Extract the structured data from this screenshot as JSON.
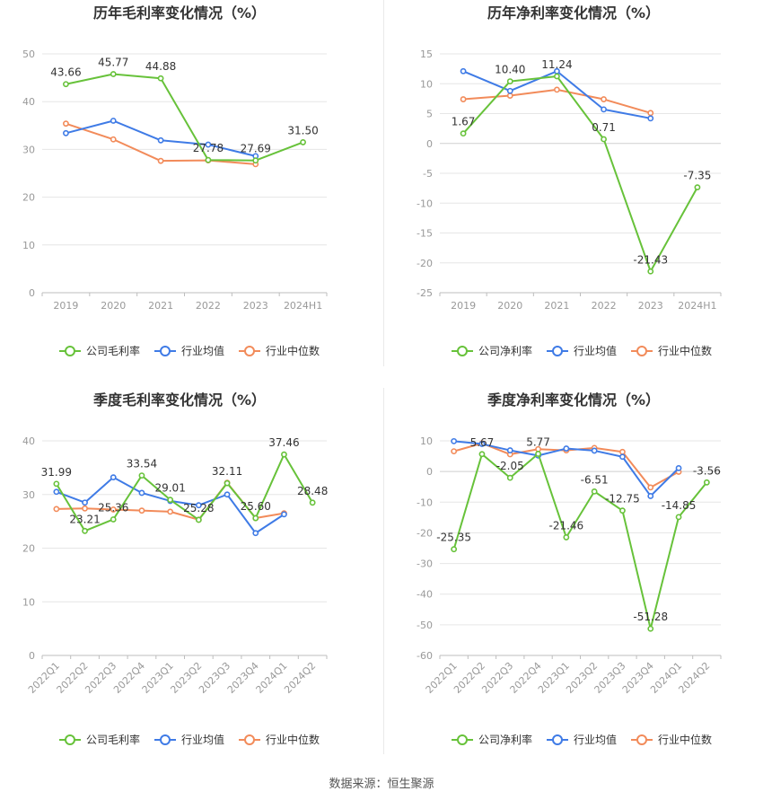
{
  "source": "数据来源：恒生聚源",
  "colors": {
    "company": "#67c23a",
    "avg": "#3f7be6",
    "median": "#f28b5a",
    "grid": "#e6e6e6",
    "axis": "#999999"
  },
  "legend_company_gross": "公司毛利率",
  "legend_company_net": "公司净利率",
  "legend_avg": "行业均值",
  "legend_median": "行业中位数",
  "chart_data": [
    {
      "id": "annual-gross",
      "type": "line",
      "title": "历年毛利率变化情况（%）",
      "categories": [
        "2019",
        "2020",
        "2021",
        "2022",
        "2023",
        "2024H1"
      ],
      "ylim": [
        0,
        50
      ],
      "yticks": [
        0,
        10,
        20,
        30,
        40,
        50
      ],
      "legend_position": "bottom",
      "series": [
        {
          "name": "公司毛利率",
          "role": "company",
          "values": [
            43.66,
            45.77,
            44.88,
            27.78,
            27.69,
            31.5
          ],
          "labels": [
            "43.66",
            "45.77",
            "44.88",
            "27.78",
            "27.69",
            "31.50"
          ]
        },
        {
          "name": "行业均值",
          "role": "avg",
          "values": [
            33.4,
            36.0,
            31.9,
            31.0,
            28.6,
            null
          ]
        },
        {
          "name": "行业中位数",
          "role": "median",
          "values": [
            35.4,
            32.1,
            27.6,
            27.7,
            26.9,
            null
          ]
        }
      ]
    },
    {
      "id": "annual-net",
      "type": "line",
      "title": "历年净利率变化情况（%）",
      "categories": [
        "2019",
        "2020",
        "2021",
        "2022",
        "2023",
        "2024H1"
      ],
      "ylim": [
        -25,
        15
      ],
      "yticks": [
        -25,
        -20,
        -15,
        -10,
        -5,
        0,
        5,
        10,
        15
      ],
      "legend_position": "bottom",
      "series": [
        {
          "name": "公司净利率",
          "role": "company",
          "values": [
            1.67,
            10.4,
            11.24,
            0.71,
            -21.43,
            -7.35
          ],
          "labels": [
            "1.67",
            "10.40",
            "11.24",
            "0.71",
            "-21.43",
            "-7.35"
          ]
        },
        {
          "name": "行业均值",
          "role": "avg",
          "values": [
            12.1,
            8.8,
            12.1,
            5.7,
            4.2,
            null
          ]
        },
        {
          "name": "行业中位数",
          "role": "median",
          "values": [
            7.4,
            8.0,
            9.0,
            7.4,
            5.1,
            null
          ]
        }
      ]
    },
    {
      "id": "quarterly-gross",
      "type": "line",
      "title": "季度毛利率变化情况（%）",
      "categories": [
        "2022Q1",
        "2022Q2",
        "2022Q3",
        "2022Q4",
        "2023Q1",
        "2023Q2",
        "2023Q3",
        "2023Q4",
        "2024Q1",
        "2024Q2"
      ],
      "ylim": [
        0,
        40
      ],
      "yticks": [
        0,
        10,
        20,
        30,
        40
      ],
      "legend_position": "bottom",
      "series": [
        {
          "name": "公司毛利率",
          "role": "company",
          "values": [
            31.99,
            23.21,
            25.36,
            33.54,
            29.01,
            25.28,
            32.11,
            25.6,
            37.46,
            28.48
          ],
          "labels": [
            "31.99",
            "23.21",
            "25.36",
            "33.54",
            "29.01",
            "25.28",
            "32.11",
            "25.60",
            "37.46",
            "28.48"
          ]
        },
        {
          "name": "行业均值",
          "role": "avg",
          "values": [
            30.5,
            28.5,
            33.2,
            30.3,
            28.8,
            28.0,
            30.0,
            22.8,
            26.3,
            null
          ]
        },
        {
          "name": "行业中位数",
          "role": "median",
          "values": [
            27.3,
            27.4,
            27.2,
            27.0,
            26.8,
            25.3,
            32.2,
            25.6,
            26.5,
            null
          ]
        }
      ]
    },
    {
      "id": "quarterly-net",
      "type": "line",
      "title": "季度净利率变化情况（%）",
      "categories": [
        "2022Q1",
        "2022Q2",
        "2022Q3",
        "2022Q4",
        "2023Q1",
        "2023Q2",
        "2023Q3",
        "2023Q4",
        "2024Q1",
        "2024Q2"
      ],
      "ylim": [
        -60,
        10
      ],
      "yticks": [
        -60,
        -50,
        -40,
        -30,
        -20,
        -10,
        0,
        10
      ],
      "legend_position": "bottom",
      "series": [
        {
          "name": "公司净利率",
          "role": "company",
          "values": [
            -25.35,
            5.67,
            -2.05,
            5.77,
            -21.46,
            -6.51,
            -12.75,
            -51.28,
            -14.85,
            -3.56
          ],
          "labels": [
            "-25.35",
            "5.67",
            "-2.05",
            "5.77",
            "-21.46",
            "-6.51",
            "-12.75",
            "-51.28",
            "-14.85",
            "-3.56"
          ]
        },
        {
          "name": "行业均值",
          "role": "avg",
          "values": [
            9.9,
            9.0,
            6.9,
            5.2,
            7.5,
            6.8,
            4.8,
            -8.0,
            1.1,
            null
          ]
        },
        {
          "name": "行业中位数",
          "role": "median",
          "values": [
            6.6,
            9.2,
            5.6,
            7.3,
            6.9,
            7.7,
            6.4,
            -5.2,
            -0.1,
            null
          ]
        }
      ]
    }
  ]
}
